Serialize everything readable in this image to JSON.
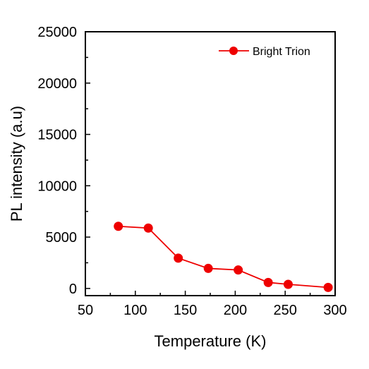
{
  "chart_data": {
    "type": "line",
    "xlabel": "Temperature (K)",
    "ylabel": "PL intensity (a.u)",
    "xlim": [
      50,
      300
    ],
    "ylim": [
      -700,
      25000
    ],
    "xticks": [
      50,
      100,
      150,
      200,
      250,
      300
    ],
    "xtick_labels": [
      "50",
      "100",
      "150",
      "200",
      "250",
      "300"
    ],
    "yticks": [
      0,
      5000,
      10000,
      15000,
      20000,
      25000
    ],
    "ytick_labels": [
      "0",
      "5000",
      "10000",
      "15000",
      "20000",
      "25000"
    ],
    "grid": false,
    "legend": {
      "position": "top-right"
    },
    "series": [
      {
        "name": "Bright Trion",
        "color": "#ee0000",
        "marker": "circle",
        "x": [
          83,
          113,
          143,
          173,
          203,
          233,
          253,
          293
        ],
        "y": [
          6050,
          5880,
          2950,
          1950,
          1800,
          580,
          400,
          100
        ]
      }
    ]
  }
}
